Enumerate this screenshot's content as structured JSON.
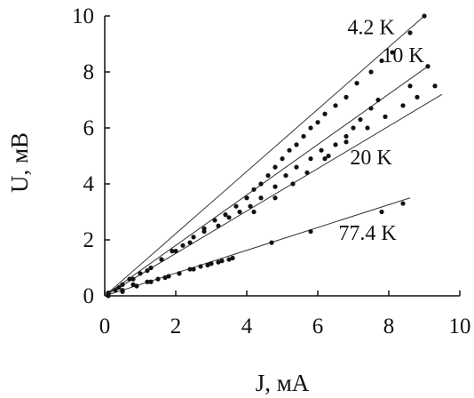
{
  "chart_data": {
    "type": "scatter",
    "xlabel": "J, мА",
    "ylabel": "U, мВ",
    "xlim": [
      0,
      10
    ],
    "ylim": [
      0,
      10
    ],
    "xticks": [
      "0",
      "2",
      "4",
      "6",
      "8",
      "10"
    ],
    "yticks": [
      "0",
      "2",
      "4",
      "6",
      "8",
      "10"
    ],
    "grid": false,
    "series": [
      {
        "name": "4.2 K",
        "points": [
          [
            0.1,
            0.1
          ],
          [
            0.3,
            0.2
          ],
          [
            0.5,
            0.4
          ],
          [
            0.7,
            0.6
          ],
          [
            1.0,
            0.8
          ],
          [
            1.3,
            1.0
          ],
          [
            1.6,
            1.3
          ],
          [
            1.9,
            1.6
          ],
          [
            2.2,
            1.8
          ],
          [
            2.5,
            2.1
          ],
          [
            2.8,
            2.4
          ],
          [
            3.1,
            2.7
          ],
          [
            3.4,
            2.9
          ],
          [
            3.7,
            3.2
          ],
          [
            4.0,
            3.5
          ],
          [
            4.2,
            3.8
          ],
          [
            4.4,
            4.0
          ],
          [
            4.6,
            4.3
          ],
          [
            4.8,
            4.6
          ],
          [
            5.0,
            4.9
          ],
          [
            5.2,
            5.2
          ],
          [
            5.4,
            5.4
          ],
          [
            5.6,
            5.7
          ],
          [
            5.8,
            6.0
          ],
          [
            6.0,
            6.2
          ],
          [
            6.2,
            6.5
          ],
          [
            6.5,
            6.8
          ],
          [
            6.8,
            7.1
          ],
          [
            7.1,
            7.6
          ],
          [
            7.5,
            8.0
          ],
          [
            7.8,
            8.4
          ],
          [
            8.1,
            8.7
          ],
          [
            8.6,
            9.4
          ],
          [
            9.0,
            10.0
          ]
        ]
      },
      {
        "name": "10 K",
        "points": [
          [
            0.1,
            0.1
          ],
          [
            0.4,
            0.3
          ],
          [
            0.8,
            0.6
          ],
          [
            1.2,
            0.9
          ],
          [
            1.6,
            1.3
          ],
          [
            2.0,
            1.6
          ],
          [
            2.4,
            1.9
          ],
          [
            2.8,
            2.3
          ],
          [
            3.2,
            2.5
          ],
          [
            3.5,
            2.8
          ],
          [
            3.8,
            3.0
          ],
          [
            4.1,
            3.2
          ],
          [
            4.4,
            3.5
          ],
          [
            4.8,
            3.9
          ],
          [
            5.1,
            4.3
          ],
          [
            5.4,
            4.6
          ],
          [
            5.8,
            4.9
          ],
          [
            6.1,
            5.2
          ],
          [
            6.3,
            5.0
          ],
          [
            6.5,
            5.4
          ],
          [
            6.8,
            5.7
          ],
          [
            7.0,
            6.0
          ],
          [
            7.2,
            6.3
          ],
          [
            7.5,
            6.7
          ],
          [
            7.7,
            7.0
          ],
          [
            8.6,
            7.5
          ],
          [
            9.1,
            8.2
          ]
        ]
      },
      {
        "name": "20 K",
        "points": [
          [
            0.1,
            0.1
          ],
          [
            0.5,
            0.2
          ],
          [
            0.8,
            0.4
          ],
          [
            1.2,
            0.5
          ],
          [
            1.5,
            0.6
          ],
          [
            1.8,
            0.7
          ],
          [
            2.1,
            0.8
          ],
          [
            2.4,
            0.95
          ],
          [
            2.7,
            1.05
          ],
          [
            3.0,
            1.15
          ],
          [
            3.3,
            1.25
          ],
          [
            3.6,
            1.35
          ],
          [
            4.2,
            3.0
          ],
          [
            4.8,
            3.5
          ],
          [
            5.3,
            4.0
          ],
          [
            5.7,
            4.4
          ],
          [
            6.2,
            4.9
          ],
          [
            6.8,
            5.5
          ],
          [
            7.4,
            6.0
          ],
          [
            7.9,
            6.4
          ],
          [
            8.4,
            6.8
          ],
          [
            8.8,
            7.1
          ],
          [
            9.3,
            7.5
          ]
        ]
      },
      {
        "name": "77.4 K",
        "points": [
          [
            0.1,
            0.0
          ],
          [
            0.5,
            0.15
          ],
          [
            0.9,
            0.35
          ],
          [
            1.3,
            0.5
          ],
          [
            1.7,
            0.65
          ],
          [
            2.1,
            0.8
          ],
          [
            2.5,
            0.95
          ],
          [
            2.9,
            1.1
          ],
          [
            3.2,
            1.2
          ],
          [
            3.5,
            1.3
          ],
          [
            4.7,
            1.9
          ],
          [
            5.8,
            2.3
          ],
          [
            7.8,
            3.0
          ],
          [
            8.4,
            3.3
          ]
        ]
      }
    ],
    "lines": [
      {
        "name": "4.2 K",
        "from": [
          0,
          0
        ],
        "to": [
          9.0,
          10.0
        ]
      },
      {
        "name": "10 K",
        "from": [
          0,
          0
        ],
        "to": [
          9.1,
          8.2
        ]
      },
      {
        "name": "20 K",
        "from": [
          0,
          0
        ],
        "to": [
          9.5,
          7.2
        ]
      },
      {
        "name": "77.4 K",
        "from": [
          0,
          0
        ],
        "to": [
          8.6,
          3.5
        ]
      }
    ],
    "series_labels": [
      "4.2 K",
      "10 K",
      "20 K",
      "77.4 K"
    ]
  },
  "colors": {
    "marker": "#111111",
    "line": "#333333",
    "axis": "#111111"
  }
}
